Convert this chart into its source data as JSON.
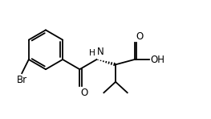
{
  "background_color": "#ffffff",
  "line_color": "#000000",
  "line_width": 1.3,
  "font_size": 8.5,
  "fig_width": 2.63,
  "fig_height": 1.48,
  "dpi": 100,
  "xlim": [
    0,
    10.5
  ],
  "ylim": [
    0,
    6.0
  ]
}
